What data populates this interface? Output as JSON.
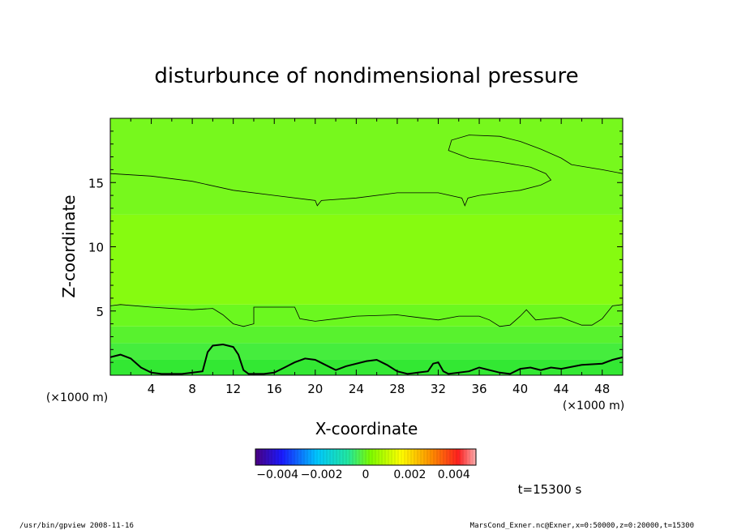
{
  "chart_data": {
    "type": "heatmap",
    "title": "disturbunce of nondimensional pressure",
    "xlabel": "X-coordinate",
    "ylabel": "Z-coordinate",
    "x_unit_left": "(×1000 m)",
    "x_unit_right": "(×1000 m)",
    "xlim": [
      0,
      50
    ],
    "ylim": [
      0,
      20
    ],
    "xticks": [
      "4",
      "8",
      "12",
      "16",
      "20",
      "24",
      "28",
      "32",
      "36",
      "40",
      "44",
      "48"
    ],
    "yticks": [
      "5",
      "10",
      "15"
    ],
    "xtick_values": [
      4,
      8,
      12,
      16,
      20,
      24,
      28,
      32,
      36,
      40,
      44,
      48
    ],
    "ytick_values": [
      5,
      10,
      15
    ],
    "colorbar": {
      "min": -0.005,
      "max": 0.005,
      "ticks": [
        "−0.004",
        "−0.002",
        "0",
        "0.002",
        "0.004"
      ],
      "tick_values": [
        -0.004,
        -0.002,
        0,
        0.002,
        0.004
      ]
    },
    "field_bands": [
      {
        "z": [
          0,
          1.2
        ],
        "value": -0.0011,
        "color": "#33e833"
      },
      {
        "z": [
          1.2,
          2.5
        ],
        "value": -0.0008,
        "color": "#45ed3d"
      },
      {
        "z": [
          2.5,
          3.8
        ],
        "value": -0.0005,
        "color": "#58f22e"
      },
      {
        "z": [
          3.8,
          5.5
        ],
        "value": -0.0002,
        "color": "#6bf81f"
      },
      {
        "z": [
          5.5,
          12.5
        ],
        "value": 0.0001,
        "color": "#86fb10"
      },
      {
        "z": [
          12.5,
          20
        ],
        "value": -0.0001,
        "color": "#77f81d"
      }
    ],
    "contours": [
      {
        "name": "upper",
        "points": [
          [
            0,
            15.7
          ],
          [
            4,
            15.5
          ],
          [
            8,
            15.1
          ],
          [
            12,
            14.4
          ],
          [
            16,
            14.0
          ],
          [
            20,
            13.6
          ],
          [
            20.2,
            13.2
          ],
          [
            20.6,
            13.6
          ],
          [
            24,
            13.8
          ],
          [
            28,
            14.2
          ],
          [
            32,
            14.2
          ],
          [
            34.3,
            13.8
          ],
          [
            34.6,
            13.2
          ],
          [
            34.9,
            13.8
          ],
          [
            36,
            14.0
          ],
          [
            38,
            14.2
          ],
          [
            40,
            14.4
          ],
          [
            42,
            14.8
          ],
          [
            43,
            15.2
          ],
          [
            42.5,
            15.7
          ],
          [
            41,
            16.2
          ],
          [
            38,
            16.6
          ],
          [
            35,
            16.9
          ],
          [
            33,
            17.5
          ],
          [
            33.3,
            18.3
          ],
          [
            35,
            18.7
          ],
          [
            38,
            18.6
          ],
          [
            40,
            18.2
          ],
          [
            42,
            17.6
          ],
          [
            44,
            16.9
          ],
          [
            45,
            16.4
          ],
          [
            48,
            16.0
          ],
          [
            50,
            15.7
          ]
        ],
        "width": 0.8
      },
      {
        "name": "middle",
        "points": [
          [
            0,
            5.4
          ],
          [
            1,
            5.5
          ],
          [
            4,
            5.3
          ],
          [
            8,
            5.1
          ],
          [
            10,
            5.2
          ],
          [
            11,
            4.7
          ],
          [
            12,
            4.0
          ],
          [
            13,
            3.8
          ],
          [
            14,
            4.0
          ],
          [
            14,
            5.3
          ],
          [
            18,
            5.3
          ],
          [
            18.5,
            4.4
          ],
          [
            20,
            4.2
          ],
          [
            22,
            4.4
          ],
          [
            24,
            4.6
          ],
          [
            28,
            4.7
          ],
          [
            30,
            4.5
          ],
          [
            32,
            4.3
          ],
          [
            34,
            4.6
          ],
          [
            36,
            4.6
          ],
          [
            37,
            4.3
          ],
          [
            38,
            3.8
          ],
          [
            39,
            3.9
          ],
          [
            40,
            4.6
          ],
          [
            40.6,
            5.1
          ],
          [
            41.5,
            4.3
          ],
          [
            44,
            4.5
          ],
          [
            46,
            3.9
          ],
          [
            47,
            3.9
          ],
          [
            48,
            4.4
          ],
          [
            49,
            5.4
          ],
          [
            50,
            5.5
          ]
        ],
        "width": 0.8
      },
      {
        "name": "lower-thick",
        "points": [
          [
            0,
            1.4
          ],
          [
            1,
            1.6
          ],
          [
            2,
            1.3
          ],
          [
            3,
            0.6
          ],
          [
            4,
            0.2
          ],
          [
            5,
            0.1
          ],
          [
            7,
            0.1
          ],
          [
            9,
            0.3
          ],
          [
            9.5,
            1.8
          ],
          [
            10,
            2.3
          ],
          [
            11,
            2.4
          ],
          [
            12,
            2.2
          ],
          [
            12.5,
            1.6
          ],
          [
            13,
            0.4
          ],
          [
            13.5,
            0.1
          ],
          [
            15,
            0.1
          ],
          [
            16,
            0.2
          ],
          [
            17,
            0.6
          ],
          [
            18,
            1.0
          ],
          [
            19,
            1.3
          ],
          [
            20,
            1.2
          ],
          [
            21,
            0.8
          ],
          [
            22,
            0.4
          ],
          [
            23,
            0.7
          ],
          [
            25,
            1.1
          ],
          [
            26,
            1.2
          ],
          [
            27,
            0.8
          ],
          [
            28,
            0.3
          ],
          [
            29,
            0.1
          ],
          [
            30,
            0.2
          ],
          [
            31,
            0.3
          ],
          [
            31.5,
            0.9
          ],
          [
            32,
            1.0
          ],
          [
            32.5,
            0.3
          ],
          [
            33,
            0.1
          ],
          [
            35,
            0.3
          ],
          [
            36,
            0.6
          ],
          [
            38,
            0.2
          ],
          [
            39,
            0.1
          ],
          [
            40,
            0.5
          ],
          [
            41,
            0.6
          ],
          [
            42,
            0.4
          ],
          [
            43,
            0.6
          ],
          [
            44,
            0.5
          ],
          [
            46,
            0.8
          ],
          [
            48,
            0.9
          ],
          [
            49,
            1.2
          ],
          [
            50,
            1.4
          ]
        ],
        "width": 2
      }
    ]
  },
  "footer": {
    "time_label": "t=15300 s",
    "left_note": "/usr/bin/gpview  2008-11-16",
    "right_note": "MarsCond_Exner.nc@Exner,x=0:50000,z=0:20000,t=15300"
  }
}
